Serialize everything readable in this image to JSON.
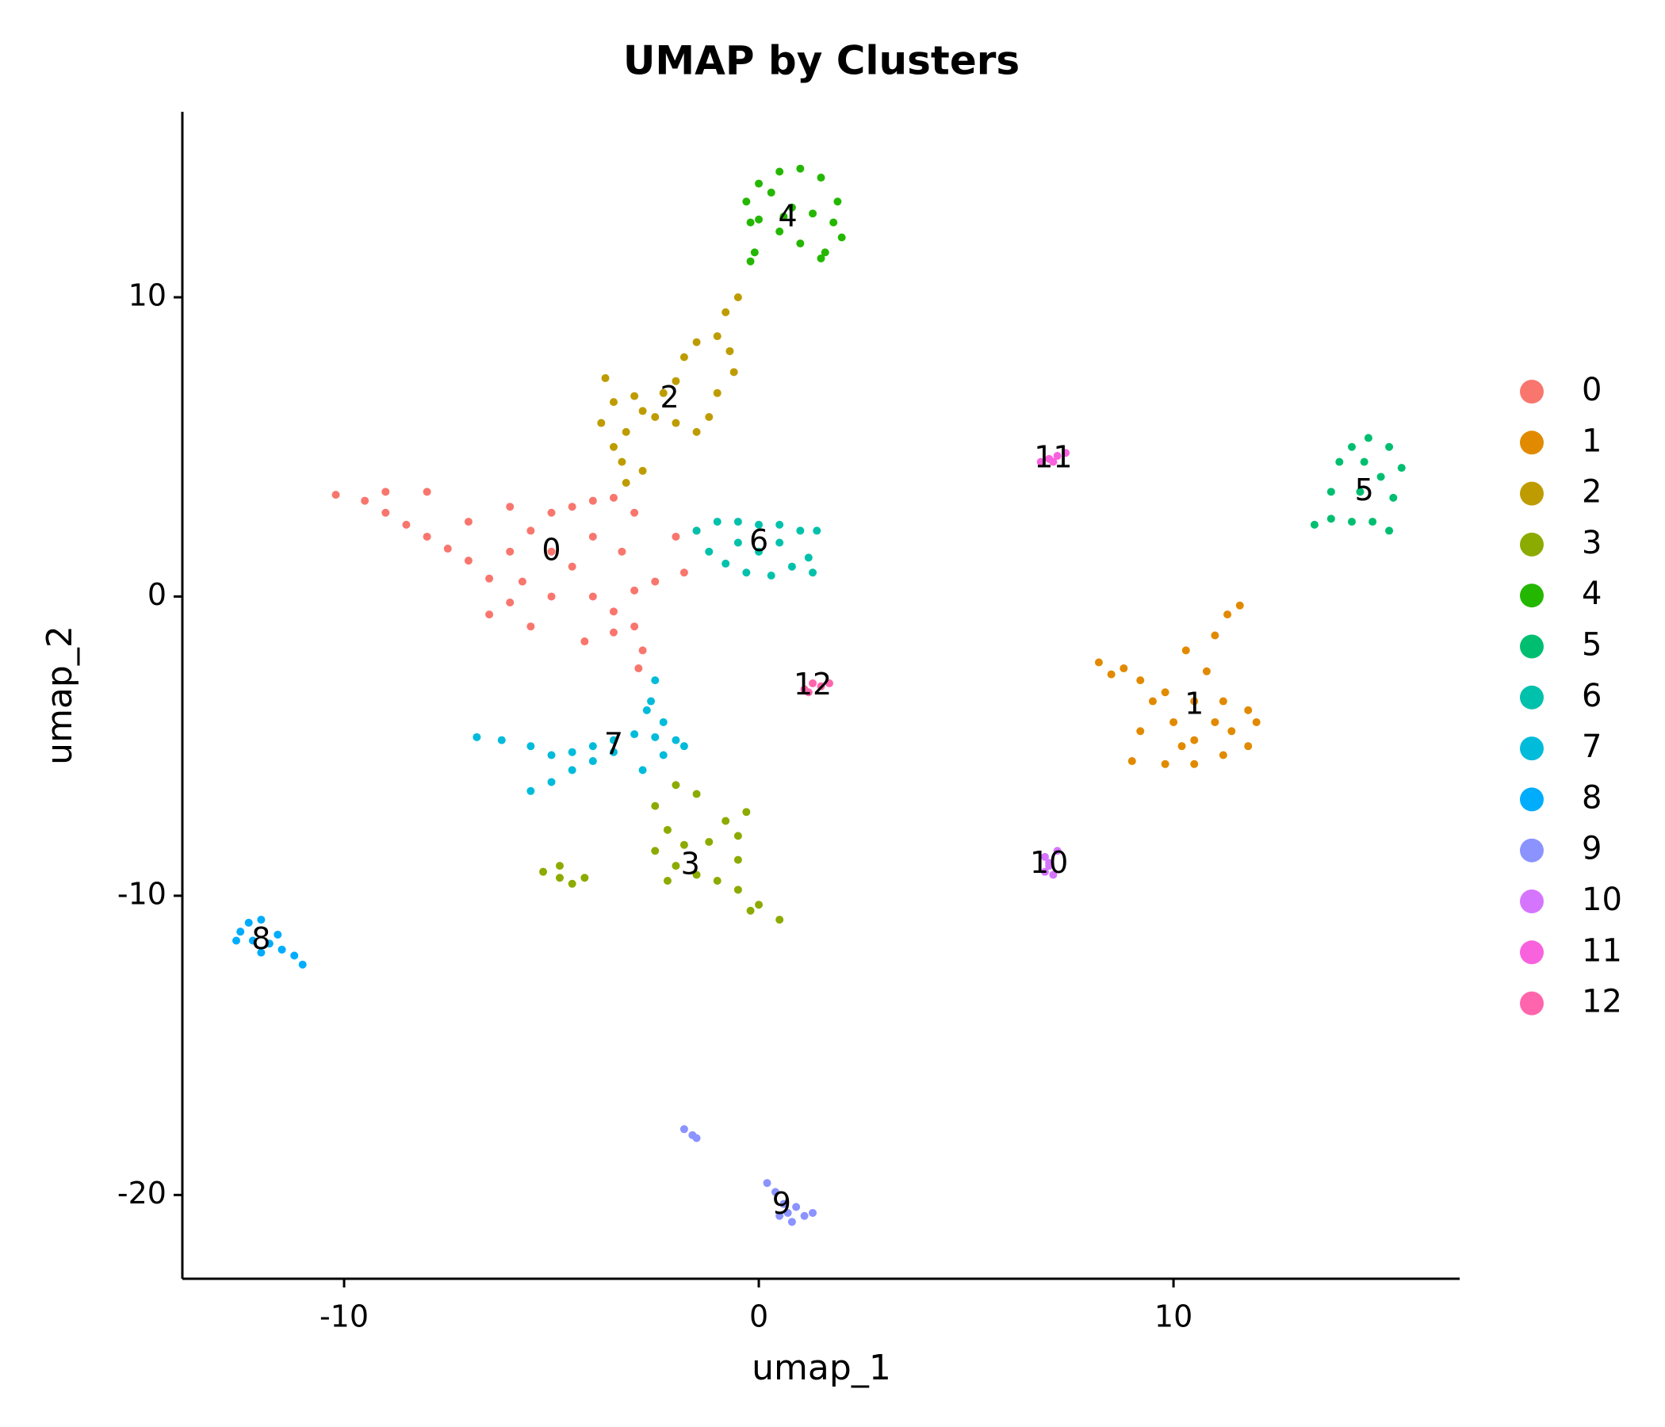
{
  "chart_data": {
    "type": "scatter",
    "title": "UMAP by Clusters",
    "x_label": "umap_1",
    "y_label": "umap_2",
    "xlim": [
      -13.9,
      16.9
    ],
    "ylim": [
      -22.8,
      16.2
    ],
    "xticks": [
      -10,
      0,
      10
    ],
    "yticks": [
      -20,
      -10,
      0,
      10
    ],
    "grid": false,
    "legend": "right",
    "series": [
      {
        "name": "0",
        "color": "#F8766D",
        "x": [
          -10.2,
          -9.5,
          -9,
          -8.5,
          -8,
          -7.5,
          -7,
          -6.5,
          -6,
          -6.5,
          -5.5,
          -5,
          -5,
          -5,
          -4.5,
          -4,
          -3.5,
          -3,
          -4,
          -4.5,
          -4,
          -3.5,
          -3,
          -2.8,
          -2.9,
          -3.5,
          -6,
          -7,
          -8,
          -9,
          -5.5,
          -3.3,
          -2.5,
          -2,
          -1.5,
          -1.8,
          -6,
          -4.2,
          -5.7,
          -3
        ],
        "y": [
          3.4,
          3.2,
          2.8,
          2.4,
          2,
          1.6,
          1.2,
          0.6,
          -0.2,
          -0.6,
          -1,
          0,
          1.5,
          2.8,
          3,
          3.2,
          3.3,
          2.8,
          2,
          1,
          0,
          -0.5,
          -1,
          -1.8,
          -2.4,
          -1.2,
          1.5,
          2.5,
          3.5,
          3.5,
          2.2,
          1.5,
          0.5,
          2,
          2.2,
          0.8,
          3,
          -1.5,
          0.5,
          0.2
        ]
      },
      {
        "name": "1",
        "color": "#E18A00",
        "x": [
          8.2,
          8.8,
          9.2,
          9.5,
          9.2,
          9,
          9.8,
          10.5,
          11.2,
          11.8,
          12,
          11.8,
          11.2,
          10.8,
          11,
          10.3,
          10.5,
          10,
          10.5,
          11,
          9.8,
          10.2,
          11.4,
          11.6,
          11.3,
          8.5
        ],
        "y": [
          -2.2,
          -2.4,
          -2.8,
          -3.5,
          -4.5,
          -5.5,
          -5.6,
          -5.6,
          -5.3,
          -5,
          -4.2,
          -3.8,
          -3.5,
          -2.5,
          -1.3,
          -1.8,
          -3.5,
          -4.2,
          -4.8,
          -4.2,
          -3.2,
          -5,
          -4.5,
          -0.3,
          -0.6,
          -2.6
        ]
      },
      {
        "name": "2",
        "color": "#BE9C00",
        "x": [
          -3.7,
          -3.5,
          -3.2,
          -3.5,
          -3.3,
          -3.2,
          -2.8,
          -2.3,
          -2,
          -1.8,
          -1.5,
          -1,
          -0.7,
          -0.6,
          -1,
          -1.2,
          -1.5,
          -2,
          -2.5,
          -3,
          -0.8,
          -0.5,
          -3.8,
          -2.8
        ],
        "y": [
          7.3,
          6.5,
          5.5,
          5,
          4.5,
          3.8,
          6.2,
          6.8,
          7.2,
          8,
          8.5,
          8.7,
          8.2,
          7.5,
          6.8,
          6,
          5.5,
          5.8,
          6,
          6.7,
          9.5,
          10,
          5.8,
          4.2
        ]
      },
      {
        "name": "3",
        "color": "#8CAB00",
        "x": [
          -2.5,
          -2.2,
          -2.5,
          -2,
          -1.5,
          -1,
          -0.5,
          0,
          0.5,
          -0.2,
          -0.5,
          -0.3,
          -0.8,
          -1.2,
          -1.8,
          -0.5,
          -1.5,
          -2,
          -5.2,
          -4.8,
          -4.5,
          -4.2,
          -4.8,
          -2.2
        ],
        "y": [
          -7,
          -7.8,
          -8.5,
          -9,
          -9.3,
          -9.5,
          -9.8,
          -10.3,
          -10.8,
          -10.5,
          -8,
          -7.2,
          -7.5,
          -8.2,
          -8.3,
          -8.8,
          -6.6,
          -6.3,
          -9.2,
          -9.4,
          -9.6,
          -9.4,
          -9,
          -9.5
        ]
      },
      {
        "name": "4",
        "color": "#24B700",
        "x": [
          -0.3,
          0,
          0.5,
          1,
          1.5,
          1.9,
          2,
          1.6,
          1,
          0.5,
          0,
          -0.2,
          0.8,
          1.3,
          0.3,
          1.5,
          -0.1,
          -0.2,
          0.6,
          1.8
        ],
        "y": [
          13.2,
          13.8,
          14.2,
          14.3,
          14,
          13.2,
          12,
          11.5,
          11.8,
          12.2,
          12.6,
          12.5,
          13,
          12.8,
          13.5,
          11.3,
          11.5,
          11.2,
          12.7,
          12.5
        ]
      },
      {
        "name": "5",
        "color": "#00BE70",
        "x": [
          13.8,
          14,
          14.3,
          14.7,
          15.2,
          15.5,
          15.3,
          14.8,
          14.3,
          13.8,
          13.4,
          14.5,
          15,
          14.6,
          15.2
        ],
        "y": [
          3.5,
          4.5,
          5,
          5.3,
          5,
          4.3,
          3.3,
          2.5,
          2.5,
          2.6,
          2.4,
          3.5,
          4,
          4.5,
          2.2
        ]
      },
      {
        "name": "6",
        "color": "#00C1AB",
        "x": [
          -1.5,
          -1,
          -0.5,
          0,
          0.5,
          1,
          1.4,
          1.2,
          0.8,
          0.3,
          -0.3,
          -0.8,
          -1.2,
          0,
          0.5,
          -0.5,
          1.3
        ],
        "y": [
          2.2,
          2.5,
          2.5,
          2.4,
          2.4,
          2.2,
          2.2,
          1.3,
          1,
          0.7,
          0.8,
          1.1,
          1.5,
          1.5,
          1.8,
          1.8,
          0.8
        ]
      },
      {
        "name": "7",
        "color": "#00BBDA",
        "x": [
          -2.5,
          -2.6,
          -2.3,
          -2,
          -2.3,
          -2.8,
          -2.5,
          -3,
          -3.5,
          -4,
          -4.5,
          -5,
          -5.5,
          -6.2,
          -6.8,
          -3.5,
          -4,
          -4.5,
          -5,
          -5.5,
          -1.8,
          -2.7
        ],
        "y": [
          -2.8,
          -3.5,
          -4.2,
          -4.8,
          -5.3,
          -5.8,
          -4.7,
          -4.6,
          -4.8,
          -5,
          -5.2,
          -5.3,
          -5,
          -4.8,
          -4.7,
          -5.2,
          -5.5,
          -5.8,
          -6.2,
          -6.5,
          -5,
          -3.8
        ]
      },
      {
        "name": "8",
        "color": "#00ACFC",
        "x": [
          -12.3,
          -12,
          -12.5,
          -12.2,
          -11.8,
          -11.5,
          -11.2,
          -11,
          -11.6,
          -12,
          -12.6
        ],
        "y": [
          -10.9,
          -10.8,
          -11.2,
          -11.5,
          -11.6,
          -11.8,
          -12,
          -12.3,
          -11.3,
          -11.9,
          -11.5
        ]
      },
      {
        "name": "9",
        "color": "#8B93FF",
        "x": [
          -1.8,
          -1.6,
          -1.5,
          0.2,
          0.4,
          0.6,
          0.5,
          0.8,
          1.1,
          1.3,
          0.9,
          0.7
        ],
        "y": [
          -17.8,
          -18,
          -18.1,
          -19.6,
          -19.9,
          -20.3,
          -20.7,
          -20.9,
          -20.7,
          -20.6,
          -20.4,
          -20.6
        ]
      },
      {
        "name": "10",
        "color": "#D575FE",
        "x": [
          6.9,
          7,
          7.1,
          7.2,
          6.9,
          7
        ],
        "y": [
          -8.7,
          -9,
          -9.3,
          -8.5,
          -9.2,
          -8.9
        ]
      },
      {
        "name": "11",
        "color": "#F962DD",
        "x": [
          6.8,
          7,
          7.2,
          7.4,
          7.1
        ],
        "y": [
          4.5,
          4.6,
          4.7,
          4.8,
          4.5
        ]
      },
      {
        "name": "12",
        "color": "#FF65AC",
        "x": [
          1.1,
          1.3,
          1.5,
          1.7,
          1.2
        ],
        "y": [
          -3.1,
          -2.9,
          -3,
          -2.9,
          -3.2
        ]
      }
    ]
  }
}
